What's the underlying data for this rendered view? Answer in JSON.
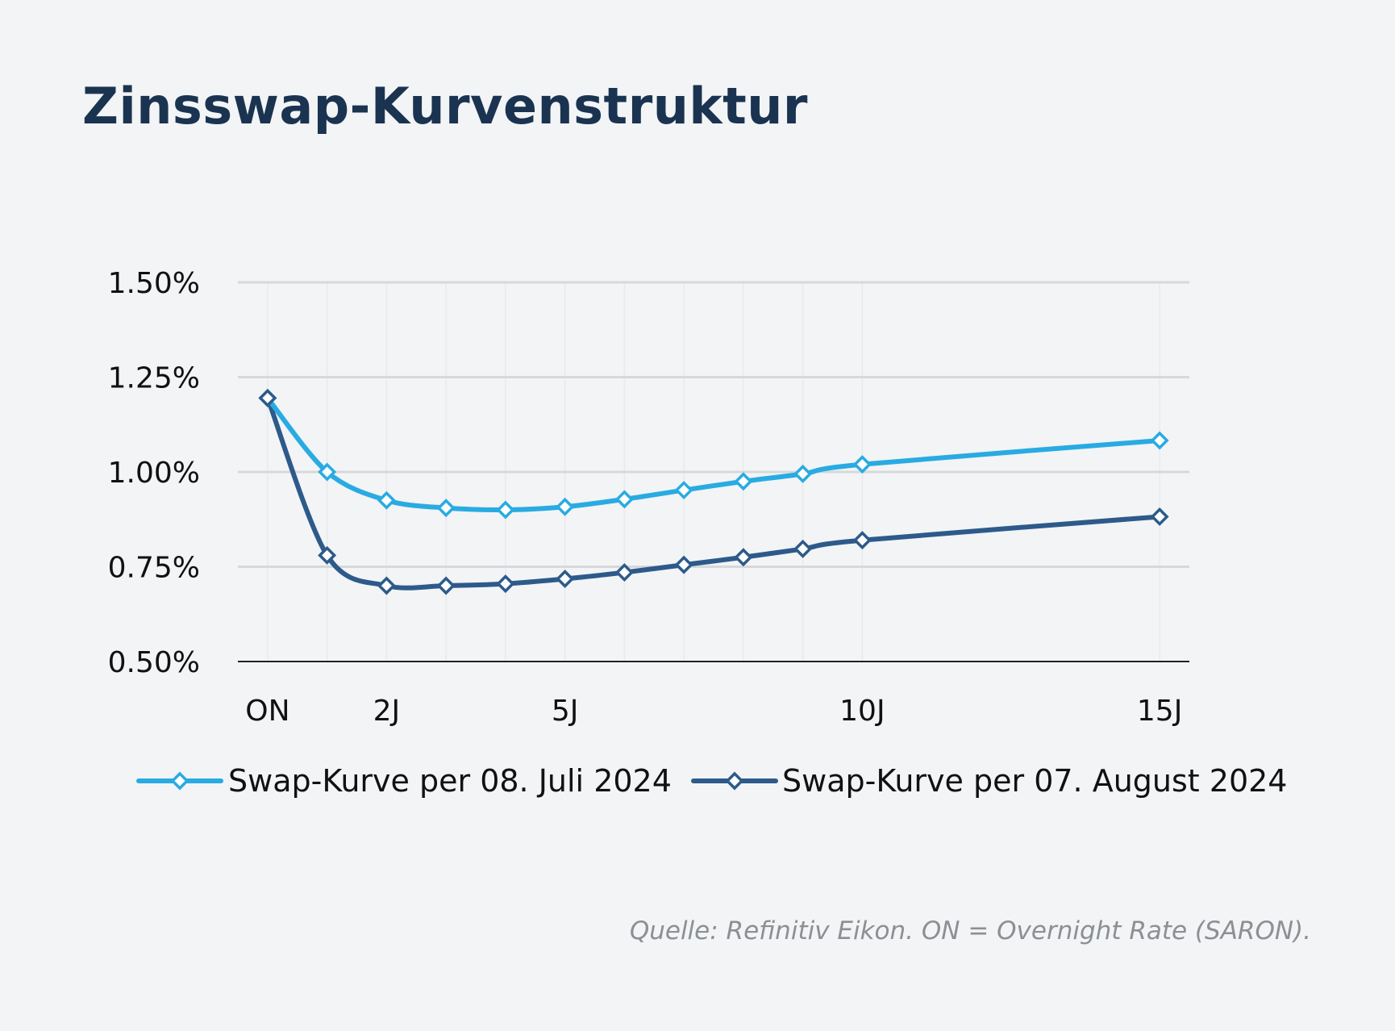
{
  "header": {
    "title": "Zinsswap-Kurvenstruktur"
  },
  "footer": {
    "source": "Quelle: Refinitiv Eikon. ON = Overnight Rate (SARON)."
  },
  "chart_data": {
    "type": "line",
    "title": "Zinsswap-Kurvenstruktur",
    "xlabel": "",
    "ylabel": "",
    "x": [
      0,
      1,
      2,
      3,
      4,
      5,
      6,
      7,
      8,
      9,
      10,
      15
    ],
    "x_tick_values": [
      0,
      2,
      5,
      10,
      15
    ],
    "x_tick_labels": [
      "ON",
      "2J",
      "5J",
      "10J",
      "15J"
    ],
    "xlim": [
      -0.5,
      15.5
    ],
    "ylim": [
      0.5,
      1.5
    ],
    "y_ticks": [
      0.5,
      0.75,
      1.0,
      1.25,
      1.5
    ],
    "y_tick_labels": [
      "0.50%",
      "0.75%",
      "1.00%",
      "1.25%",
      "1.50%"
    ],
    "grid": true,
    "legend_position": "bottom",
    "series": [
      {
        "name": "Swap-Kurve per 08. Juli 2024",
        "color": "#29abe2",
        "values": [
          1.195,
          1.0,
          0.925,
          0.905,
          0.9,
          0.908,
          0.928,
          0.952,
          0.975,
          0.995,
          1.02,
          1.083
        ]
      },
      {
        "name": "Swap-Kurve per 07. August 2024",
        "color": "#2d5a8a",
        "values": [
          1.195,
          0.78,
          0.7,
          0.7,
          0.705,
          0.718,
          0.735,
          0.755,
          0.775,
          0.797,
          0.82,
          0.882
        ]
      }
    ]
  }
}
